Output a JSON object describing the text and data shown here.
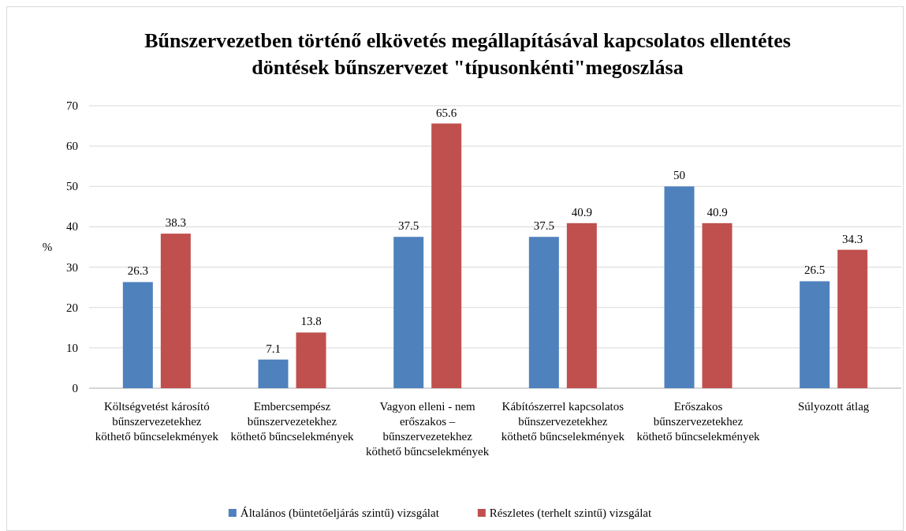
{
  "chart_data": {
    "type": "bar",
    "title": "Bűnszervezetben történő elkövetés megállapításával kapcsolatos ellentétes döntések bűnszervezet \"típusonkénti\"megoszlása",
    "ylabel": "%",
    "categories": [
      "Költségvetést károsító bűnszervezetekhez köthető bűncselekmények",
      "Embercsempész bűnszervezetekhez köthető bűncselekmények",
      "Vagyon elleni - nem erőszakos – bűnszervezetekhez köthető bűncselekmények",
      "Kábítószerrel kapcsolatos bűnszervezetekhez köthető bűncselekmények",
      "Erőszakos bűnszervezetekhez köthető bűncselekmények",
      "Súlyozott átlag"
    ],
    "series": [
      {
        "name": "Általános (büntetőeljárás szintű) vizsgálat",
        "color": "#4f81bd",
        "values": [
          26.3,
          7.1,
          37.5,
          37.5,
          50,
          26.5
        ]
      },
      {
        "name": "Részletes (terhelt szintű) vizsgálat",
        "color": "#c0504d",
        "values": [
          38.3,
          13.8,
          65.6,
          40.9,
          40.9,
          34.3
        ]
      }
    ],
    "ylim": [
      0,
      70
    ],
    "yticks": [
      0,
      10,
      20,
      30,
      40,
      50,
      60,
      70
    ],
    "grid": "y",
    "legend": "bottom",
    "data_labels": true
  }
}
